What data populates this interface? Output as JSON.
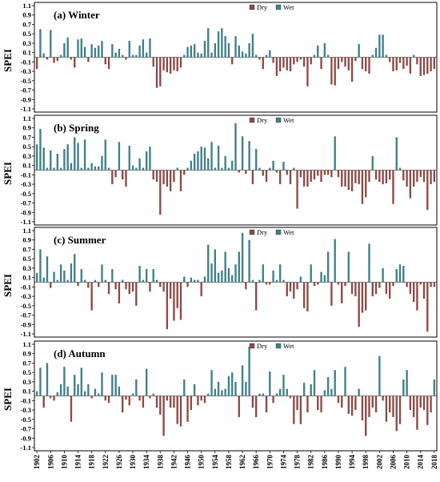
{
  "legend": {
    "dry": "Dry",
    "wet": "Wet"
  },
  "colors": {
    "dry": "#8b4a46",
    "wet": "#3f7f88",
    "frame": "#000000",
    "background": "#ffffff"
  },
  "x_tick_labels": [
    "1902",
    "1906",
    "1910",
    "1914",
    "1918",
    "1922",
    "1926",
    "1930",
    "1934",
    "1938",
    "1942",
    "1946",
    "1950",
    "1954",
    "1958",
    "1962",
    "1966",
    "1970",
    "1974",
    "1978",
    "1982",
    "1986",
    "1990",
    "1994",
    "1998",
    "2002",
    "2006",
    "2010",
    "2014",
    "2018"
  ],
  "chart_data": [
    {
      "type": "bar",
      "title": "(a) Winter",
      "ylabel": "SPEI",
      "ylim": [
        -1.1,
        1.1
      ],
      "yticks": [
        "1.1",
        "0.9",
        "0.7",
        "0.5",
        "0.3",
        "0.1",
        "-0.1",
        "-0.3",
        "-0.5",
        "-0.7",
        "-0.9",
        "-1.1"
      ],
      "x_start": 1902,
      "x_end": 2018,
      "values": [
        -0.25,
        0.6,
        0.08,
        -0.05,
        0.58,
        -0.12,
        -0.08,
        0.05,
        0.3,
        0.42,
        -0.05,
        -0.22,
        0.38,
        0.4,
        0.22,
        -0.1,
        0.28,
        0.2,
        0.25,
        0.35,
        -0.15,
        -0.25,
        0.28,
        0.1,
        0.18,
        0.05,
        -0.05,
        0.35,
        0.05,
        0.05,
        0.25,
        0.38,
        0.1,
        0.4,
        -0.2,
        -0.65,
        -0.62,
        -0.28,
        -0.32,
        -0.35,
        -0.28,
        -0.3,
        -0.22,
        0.05,
        0.22,
        0.25,
        0.28,
        0.1,
        0.08,
        0.35,
        0.62,
        0.1,
        0.3,
        0.55,
        0.62,
        0.45,
        0.3,
        -0.15,
        0.45,
        0.25,
        0.12,
        0.08,
        0.3,
        0.5,
        0.05,
        -0.05,
        -0.25,
        0.05,
        0.15,
        -0.12,
        -0.4,
        -0.3,
        -0.22,
        -0.28,
        -0.3,
        -0.15,
        -0.1,
        -0.05,
        -0.2,
        -0.62,
        -0.15,
        0.05,
        0.25,
        -0.25,
        0.3,
        0.05,
        -0.58,
        -0.6,
        -0.25,
        -0.1,
        -0.2,
        -0.28,
        -0.52,
        -0.08,
        0.28,
        -0.25,
        -0.3,
        -0.35,
        0.05,
        0.2,
        0.48,
        0.48,
        0.05,
        -0.1,
        -0.3,
        -0.28,
        -0.12,
        -0.25,
        -0.18,
        -0.35,
        0.05,
        -0.15,
        -0.4,
        -0.38,
        -0.35,
        -0.3,
        -0.25
      ]
    },
    {
      "type": "bar",
      "title": "(b) Spring",
      "ylabel": "SPEI",
      "ylim": [
        -1.1,
        1.1
      ],
      "yticks": [
        "1.1",
        "0.9",
        "0.7",
        "0.5",
        "0.3",
        "0.1",
        "-0.1",
        "-0.3",
        "-0.5",
        "-0.7",
        "-0.9",
        "-1.1"
      ],
      "x_start": 1902,
      "x_end": 2018,
      "values": [
        0.55,
        0.88,
        0.48,
        0.05,
        0.42,
        0.05,
        0.35,
        0.05,
        0.45,
        0.55,
        0.15,
        0.7,
        0.58,
        0.05,
        0.65,
        0.05,
        0.15,
        0.08,
        0.08,
        0.3,
        0.65,
        0.05,
        -0.3,
        -0.15,
        0.6,
        -0.2,
        -0.35,
        0.52,
        0.1,
        0.05,
        0.25,
        0.05,
        0.4,
        0.5,
        -0.2,
        -0.25,
        -0.95,
        -0.3,
        -0.35,
        -0.45,
        -0.25,
        0.05,
        -0.45,
        -0.1,
        0.05,
        0.2,
        0.35,
        0.4,
        0.5,
        0.48,
        0.25,
        0.6,
        0.05,
        0.52,
        0.05,
        0.3,
        0.05,
        0.2,
        1.0,
        -0.05,
        0.72,
        -0.08,
        0.62,
        -0.3,
        0.45,
        0.05,
        -0.12,
        -0.25,
        0.05,
        0.2,
        -0.05,
        -0.3,
        0.18,
        -0.1,
        -0.3,
        0.05,
        -0.82,
        -0.15,
        -0.35,
        -0.35,
        -0.25,
        -0.2,
        -0.12,
        -0.25,
        -0.1,
        -0.1,
        -0.15,
        0.72,
        -0.15,
        -0.35,
        -0.35,
        -0.42,
        -0.45,
        -0.28,
        -0.3,
        -0.72,
        -0.58,
        -0.25,
        0.3,
        -0.2,
        -0.25,
        -0.3,
        -0.28,
        -0.2,
        -0.72,
        0.7,
        0.05,
        -0.22,
        -0.35,
        -0.6,
        -0.35,
        -0.25,
        -0.15,
        -0.25,
        -0.85,
        -0.3,
        -0.25
      ]
    },
    {
      "type": "bar",
      "title": "(c) Summer",
      "ylabel": "SPEI",
      "ylim": [
        -1.1,
        1.1
      ],
      "yticks": [
        "1.1",
        "0.9",
        "0.7",
        "0.5",
        "0.3",
        "0.1",
        "-0.1",
        "-0.3",
        "-0.5",
        "-0.7",
        "-0.9",
        "-1.1"
      ],
      "x_start": 1902,
      "x_end": 2018,
      "values": [
        0.2,
        0.7,
        0.1,
        0.55,
        -0.12,
        0.22,
        0.05,
        0.38,
        0.25,
        0.05,
        0.4,
        0.6,
        -0.08,
        0.28,
        0.05,
        -0.12,
        -0.6,
        0.05,
        -0.1,
        0.38,
        0.05,
        -0.25,
        0.28,
        -0.15,
        -0.45,
        0.05,
        -0.15,
        -0.25,
        -0.2,
        -0.5,
        0.35,
        0.05,
        0.28,
        -0.2,
        0.28,
        0.05,
        -0.1,
        -0.2,
        -1.0,
        -0.35,
        -0.82,
        -0.55,
        -0.8,
        0.12,
        -0.1,
        0.1,
        0.05,
        0.05,
        -0.3,
        0.12,
        0.8,
        0.4,
        0.7,
        0.2,
        0.25,
        0.65,
        0.3,
        0.15,
        0.38,
        0.65,
        1.05,
        -0.15,
        0.9,
        0.05,
        -0.6,
        0.05,
        0.38,
        -0.05,
        -0.05,
        0.25,
        0.05,
        0.38,
        0.05,
        -0.3,
        -0.2,
        -0.35,
        -0.15,
        0.12,
        -0.55,
        -0.62,
        0.38,
        -0.08,
        -0.05,
        0.22,
        0.15,
        0.65,
        -0.5,
        0.92,
        -0.05,
        -0.45,
        -0.08,
        0.65,
        -0.25,
        -0.3,
        -0.95,
        -0.65,
        -0.6,
        0.82,
        -0.3,
        -0.25,
        -0.12,
        0.3,
        -0.25,
        -0.35,
        -0.08,
        0.28,
        0.38,
        0.35,
        -0.1,
        -0.25,
        -0.42,
        -0.6,
        -0.05,
        -0.35,
        -1.05,
        -0.1,
        -0.1
      ]
    },
    {
      "type": "bar",
      "title": "(d) Autumn",
      "ylabel": "SPEI",
      "ylim": [
        -1.1,
        1.1
      ],
      "yticks": [
        "1.1",
        "0.9",
        "0.7",
        "0.5",
        "0.3",
        "0.1",
        "-0.1",
        "-0.3",
        "-0.5",
        "-0.7",
        "-0.9",
        "-1.1"
      ],
      "x_start": 1902,
      "x_end": 2018,
      "values": [
        0.1,
        0.6,
        -0.25,
        0.7,
        -0.05,
        -0.1,
        0.08,
        0.25,
        0.62,
        0.2,
        -0.55,
        0.45,
        0.25,
        0.6,
        0.1,
        0.25,
        -0.05,
        0.15,
        0.05,
        0.5,
        -0.1,
        -0.15,
        0.45,
        0.45,
        0.2,
        -0.35,
        -0.08,
        -0.2,
        0.05,
        0.35,
        -0.1,
        -0.25,
        0.58,
        -0.05,
        0.05,
        -0.25,
        -0.4,
        -0.85,
        -0.1,
        -0.25,
        -0.25,
        -0.6,
        -0.65,
        0.35,
        -0.55,
        -0.3,
        0.25,
        -0.2,
        -0.1,
        -0.15,
        0.05,
        0.55,
        0.15,
        0.3,
        0.12,
        0.15,
        0.42,
        0.5,
        0.3,
        -0.45,
        0.65,
        0.3,
        1.05,
        -0.25,
        -0.45,
        0.05,
        0.05,
        -0.35,
        0.52,
        -0.15,
        0.05,
        0.15,
        0.45,
        0.15,
        -0.05,
        -0.6,
        -0.3,
        -0.6,
        0.28,
        -0.35,
        0.25,
        0.55,
        -0.3,
        -0.35,
        0.12,
        0.4,
        0.15,
        0.55,
        -0.15,
        -0.25,
        0.62,
        -0.38,
        -0.42,
        -0.3,
        0.15,
        -0.52,
        -0.85,
        -0.45,
        -0.25,
        -0.35,
        0.85,
        -0.1,
        -0.55,
        -0.35,
        -0.45,
        -0.75,
        -0.6,
        0.35,
        0.55,
        -0.3,
        -0.45,
        -0.72,
        -0.25,
        -0.3,
        -0.62,
        -0.35,
        0.35
      ]
    }
  ]
}
